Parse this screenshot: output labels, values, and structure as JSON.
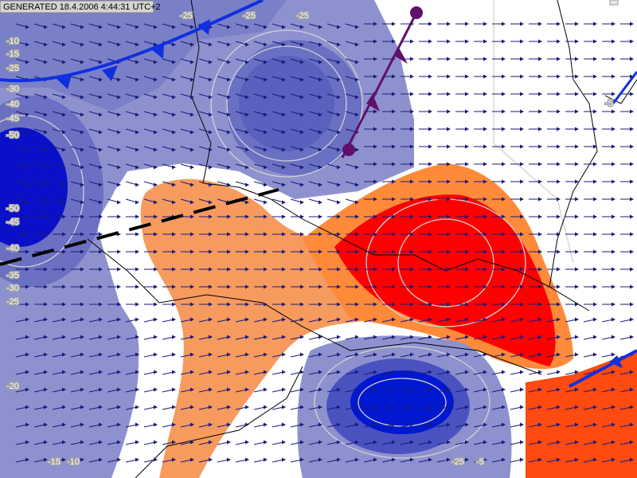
{
  "header": {
    "generated": "GENERATED 18.4.2006 4:44:31 UTC+2"
  },
  "contour_labels": {
    "left_upper": [
      -10,
      -15,
      -25,
      -30,
      -40,
      -45,
      -50
    ],
    "left_lower": [
      -50,
      -45,
      -40,
      -35,
      -30,
      -25,
      -20
    ],
    "top": [
      -25,
      -25,
      -25
    ],
    "bottom": [
      -15,
      -10,
      -25,
      -5
    ],
    "right": [
      -5
    ]
  }
}
